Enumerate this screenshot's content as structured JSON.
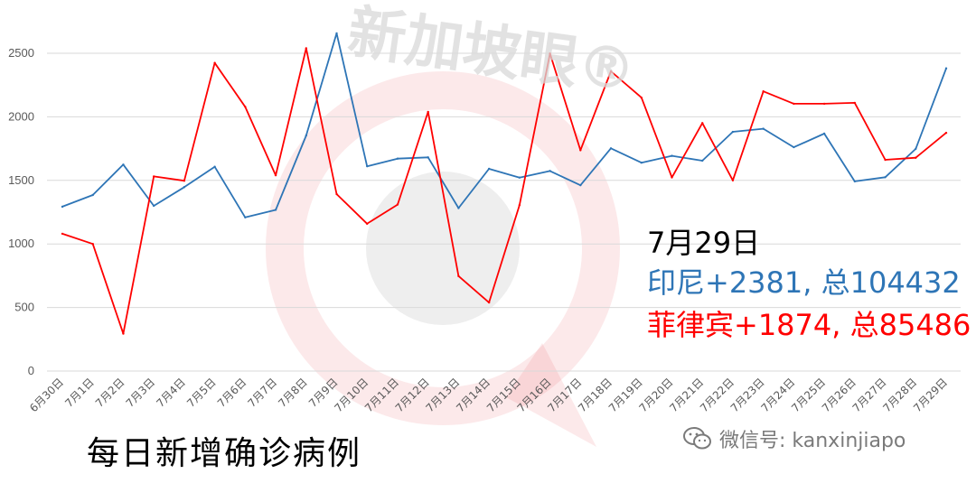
{
  "watermark": {
    "brand": "新加坡眼®"
  },
  "annotation": {
    "date": "7月29日",
    "indonesia": "印尼+2381, 总104432",
    "philippines": "菲律宾+1874, 总85486"
  },
  "caption": "每日新增确诊病例",
  "wechat": {
    "label": "微信号: kanxinjiapo",
    "icon": "wechat-icon"
  },
  "colors": {
    "indonesia": "#2E75B6",
    "philippines": "#FF0000",
    "grid": "#d9d9d9",
    "watermark": "#e8474f"
  },
  "chart_data": {
    "type": "line",
    "categories": [
      "6月30日",
      "7月1日",
      "7月2日",
      "7月3日",
      "7月4日",
      "7月5日",
      "7月6日",
      "7月7日",
      "7月8日",
      "7月9日",
      "7月10日",
      "7月11日",
      "7月12日",
      "7月13日",
      "7月14日",
      "7月15日",
      "7月16日",
      "7月17日",
      "7月18日",
      "7月19日",
      "7月20日",
      "7月21日",
      "7月22日",
      "7月23日",
      "7月24日",
      "7月25日",
      "7月26日",
      "7月27日",
      "7月28日",
      "7月29日"
    ],
    "series": [
      {
        "key": "indonesia",
        "values": [
          1293,
          1385,
          1624,
          1300,
          1447,
          1607,
          1209,
          1268,
          1853,
          2657,
          1611,
          1671,
          1681,
          1282,
          1591,
          1522,
          1574,
          1462,
          1752,
          1639,
          1693,
          1655,
          1882,
          1906,
          1761,
          1868,
          1492,
          1525,
          1748,
          2381
        ]
      },
      {
        "key": "philippines",
        "values": [
          1080,
          1000,
          294,
          1531,
          1497,
          2424,
          2079,
          1540,
          2539,
          1392,
          1159,
          1310,
          2039,
          747,
          539,
          1306,
          2498,
          1737,
          2358,
          2151,
          1523,
          1951,
          1500,
          2200,
          2103,
          2103,
          2110,
          1662,
          1678,
          1874
        ]
      }
    ],
    "ylim": [
      0,
      2700
    ],
    "yticks": [
      0,
      500,
      1000,
      1500,
      2000,
      2500
    ],
    "grid": true,
    "title": "",
    "xlabel": "",
    "ylabel": ""
  }
}
